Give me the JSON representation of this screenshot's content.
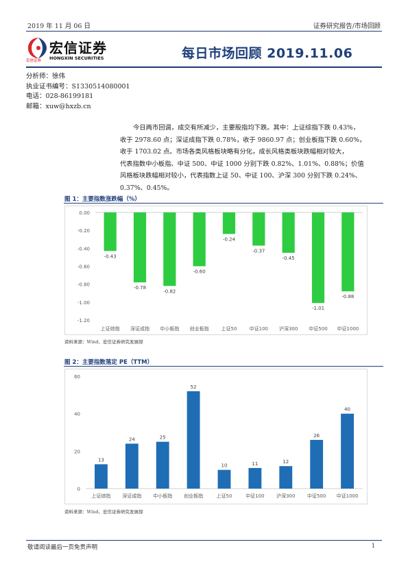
{
  "header": {
    "date": "2019 年 11 月 06 日",
    "category": "证券研究报告/市场回顾"
  },
  "logo": {
    "cn_name": "宏信证券",
    "small_cn": "宏信证券",
    "en_name": "HONGXIN SECURITIES"
  },
  "report_title": "每日市场回顾 2019.11.06",
  "analyst": {
    "name_line": "分析师：徐伟",
    "license_line": "执业证书编号：S1330514080001",
    "phone_line": "电话：028-86199181",
    "email_line": "邮箱：xuw@hxzb.cn"
  },
  "summary_lines": [
    "今日两市回调，成交有所减少，主要股指均下跌。其中：上证综指下跌 0.43%，",
    "收于 2978.60 点；深证成指下跌 0.78%，收于 9860.97 点；创业板指下跌 0.60%，",
    "收于 1703.02 点。市场各类风格板块略有分化，成长风格类板块跌幅相对较大，",
    "代表指数中小板指、中证 500、中证 1000 分别下跌 0.82%、1.01%、0.88%；价值",
    "风格板块跌幅相对较小，代表指数上证 50、中证 100、沪深 300 分别下跌 0.24%、",
    "0.37%、0.45%。"
  ],
  "figure1": {
    "title": "图 1：主要指数涨跌幅（%）",
    "source": "资料来源：Wind、宏信证券研究发展部"
  },
  "figure2": {
    "title": "图 2：主要指数落定 PE（TTM）",
    "source": "资料来源：Wind、宏信证券研究发展部"
  },
  "chart_data": [
    {
      "type": "bar",
      "categories": [
        "上证综指",
        "深证成指",
        "中小板指",
        "创业板指",
        "上证50",
        "中证100",
        "沪深300",
        "中证500",
        "中证1000"
      ],
      "values": [
        -0.43,
        -0.78,
        -0.82,
        -0.6,
        -0.24,
        -0.37,
        -0.45,
        -1.01,
        -0.88
      ],
      "value_labels": [
        "-0.43",
        "-0.78",
        "-0.82",
        "-0.60",
        "-0.24",
        "-0.37",
        "-0.45",
        "-1.01",
        "-0.88"
      ],
      "yticks": [
        "0.00",
        "-0.20",
        "-0.40",
        "-0.60",
        "-0.80",
        "-1.00",
        "-1.20"
      ],
      "ylim": [
        -1.2,
        0
      ],
      "title": "图 1：主要指数涨跌幅（%）",
      "bar_color": "#2ecc40",
      "grid": false,
      "legend": "none"
    },
    {
      "type": "bar",
      "categories": [
        "上证综指",
        "深证成指",
        "中小板指",
        "创业板指",
        "上证50",
        "中证100",
        "沪深300",
        "中证500",
        "中证1000"
      ],
      "values": [
        13,
        24,
        25,
        52,
        10,
        11,
        12,
        26,
        40
      ],
      "value_labels": [
        "13",
        "24",
        "25",
        "52",
        "10",
        "11",
        "12",
        "26",
        "40"
      ],
      "yticks": [
        "0",
        "20",
        "40",
        "60"
      ],
      "ylim": [
        0,
        60
      ],
      "title": "图 2：主要指数落定 PE（TTM）",
      "bar_color": "#1f6db5",
      "grid": false,
      "legend": "none"
    }
  ],
  "footer": {
    "disclaimer": "敬请阅读最后一页免责声明",
    "page_number": "1"
  },
  "colors": {
    "brand_blue": "#1f3f7a",
    "logo_red": "#d9262c",
    "rule": "#1a3c73"
  }
}
